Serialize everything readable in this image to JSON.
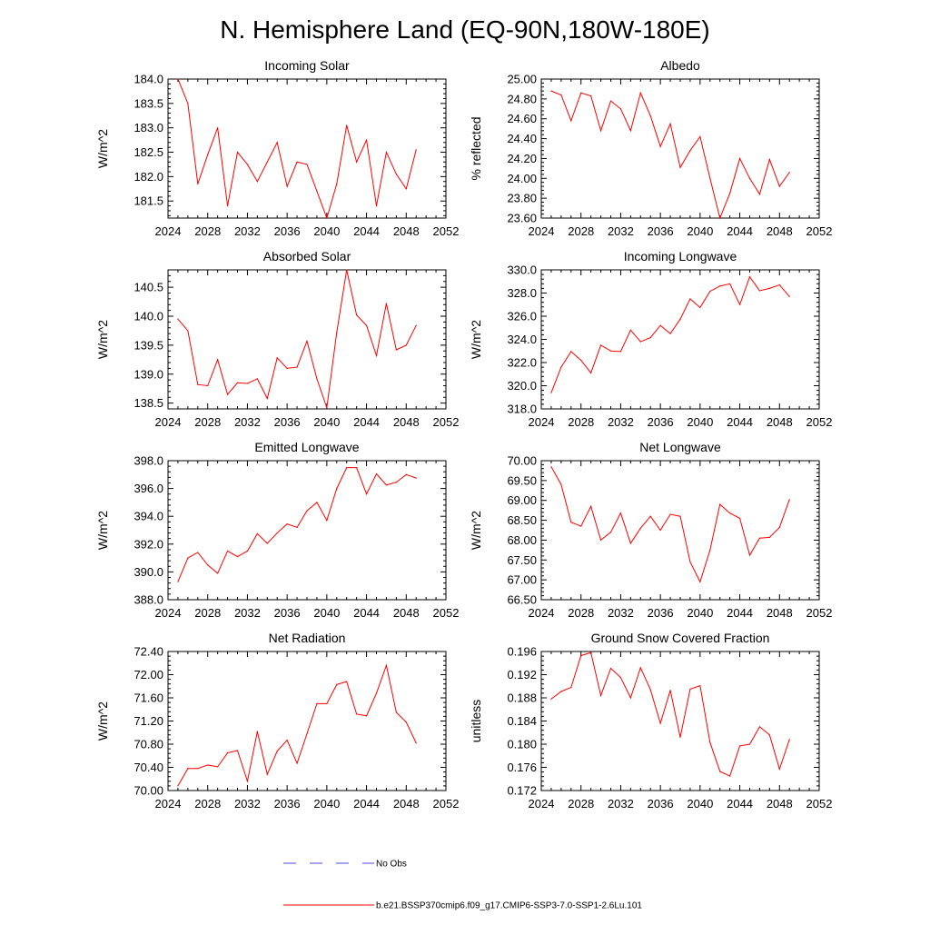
{
  "page_title": "N. Hemisphere Land (EQ-90N,180W-180E)",
  "colors": {
    "model_line": "#ff0000",
    "obs_line": "#4a4ae0",
    "axis": "#000000"
  },
  "legend": {
    "obs_label": "No Obs",
    "model_label": "b.e21.BSSP370cmip6.f09_g17.CMIP6-SSP3-7.0-SSP1-2.6Lu.101"
  },
  "chart_data": [
    {
      "type": "line",
      "title": "Incoming Solar",
      "xlabel": "",
      "ylabel": "W/m^2",
      "xlim": [
        2024,
        2052
      ],
      "ylim": [
        181.15,
        184.0
      ],
      "xticks": [
        2024,
        2028,
        2032,
        2036,
        2040,
        2044,
        2048,
        2052
      ],
      "yticks": [
        181.5,
        182.0,
        182.5,
        183.0,
        183.5,
        184.0
      ],
      "ytick_decimals": 1,
      "series": [
        {
          "x": [
            2025,
            2026,
            2027,
            2028,
            2029,
            2030,
            2031,
            2032,
            2033,
            2034,
            2035,
            2036,
            2037,
            2038,
            2039,
            2040,
            2041,
            2042,
            2043,
            2044,
            2045,
            2046,
            2047,
            2048,
            2049
          ],
          "y": [
            184.0,
            183.5,
            181.85,
            182.45,
            183.0,
            181.4,
            182.5,
            182.25,
            181.9,
            182.3,
            182.7,
            181.8,
            182.3,
            182.25,
            181.7,
            181.15,
            181.85,
            183.05,
            182.3,
            182.75,
            181.4,
            182.5,
            182.05,
            181.75,
            182.55
          ]
        }
      ]
    },
    {
      "type": "line",
      "title": "Albedo",
      "xlabel": "",
      "ylabel": "% reflected",
      "xlim": [
        2024,
        2052
      ],
      "ylim": [
        23.6,
        25.0
      ],
      "xticks": [
        2024,
        2028,
        2032,
        2036,
        2040,
        2044,
        2048,
        2052
      ],
      "yticks": [
        23.6,
        23.8,
        24.0,
        24.2,
        24.4,
        24.6,
        24.8,
        25.0
      ],
      "ytick_decimals": 2,
      "series": [
        {
          "x": [
            2025,
            2026,
            2027,
            2028,
            2029,
            2030,
            2031,
            2032,
            2033,
            2034,
            2035,
            2036,
            2037,
            2038,
            2039,
            2040,
            2041,
            2042,
            2043,
            2044,
            2045,
            2046,
            2047,
            2048,
            2049
          ],
          "y": [
            24.88,
            24.84,
            24.58,
            24.86,
            24.83,
            24.48,
            24.78,
            24.7,
            24.48,
            24.86,
            24.63,
            24.32,
            24.55,
            24.11,
            24.28,
            24.42,
            24.0,
            23.6,
            23.85,
            24.2,
            24.0,
            23.84,
            24.19,
            23.92,
            24.06
          ]
        }
      ]
    },
    {
      "type": "line",
      "title": "Absorbed Solar",
      "xlabel": "",
      "ylabel": "W/m^2",
      "xlim": [
        2024,
        2052
      ],
      "ylim": [
        138.4,
        140.8
      ],
      "xticks": [
        2024,
        2028,
        2032,
        2036,
        2040,
        2044,
        2048,
        2052
      ],
      "yticks": [
        138.5,
        139.0,
        139.5,
        140.0,
        140.5
      ],
      "ytick_decimals": 1,
      "series": [
        {
          "x": [
            2025,
            2026,
            2027,
            2028,
            2029,
            2030,
            2031,
            2032,
            2033,
            2034,
            2035,
            2036,
            2037,
            2038,
            2039,
            2040,
            2041,
            2042,
            2043,
            2044,
            2045,
            2046,
            2047,
            2048,
            2049
          ],
          "y": [
            139.95,
            139.75,
            138.82,
            138.8,
            139.25,
            138.65,
            138.85,
            138.84,
            138.92,
            138.58,
            139.28,
            139.1,
            139.12,
            139.57,
            138.92,
            138.42,
            139.72,
            140.8,
            140.02,
            139.84,
            139.32,
            140.22,
            139.42,
            139.5,
            139.84
          ]
        }
      ]
    },
    {
      "type": "line",
      "title": "Incoming Longwave",
      "xlabel": "",
      "ylabel": "W/m^2",
      "xlim": [
        2024,
        2052
      ],
      "ylim": [
        318.0,
        330.0
      ],
      "xticks": [
        2024,
        2028,
        2032,
        2036,
        2040,
        2044,
        2048,
        2052
      ],
      "yticks": [
        318.0,
        320.0,
        322.0,
        324.0,
        326.0,
        328.0,
        330.0
      ],
      "ytick_decimals": 1,
      "series": [
        {
          "x": [
            2025,
            2026,
            2027,
            2028,
            2029,
            2030,
            2031,
            2032,
            2033,
            2034,
            2035,
            2036,
            2037,
            2038,
            2039,
            2040,
            2041,
            2042,
            2043,
            2044,
            2045,
            2046,
            2047,
            2048,
            2049
          ],
          "y": [
            319.4,
            321.6,
            322.95,
            322.2,
            321.1,
            323.5,
            323.0,
            322.95,
            324.8,
            323.8,
            324.15,
            325.2,
            324.5,
            325.75,
            327.5,
            326.75,
            328.15,
            328.6,
            328.8,
            327.0,
            329.4,
            328.2,
            328.4,
            328.7,
            327.7
          ]
        }
      ]
    },
    {
      "type": "line",
      "title": "Emitted Longwave",
      "xlabel": "",
      "ylabel": "W/m^2",
      "xlim": [
        2024,
        2052
      ],
      "ylim": [
        388.0,
        398.0
      ],
      "xticks": [
        2024,
        2028,
        2032,
        2036,
        2040,
        2044,
        2048,
        2052
      ],
      "yticks": [
        388.0,
        390.0,
        392.0,
        394.0,
        396.0,
        398.0
      ],
      "ytick_decimals": 1,
      "series": [
        {
          "x": [
            2025,
            2026,
            2027,
            2028,
            2029,
            2030,
            2031,
            2032,
            2033,
            2034,
            2035,
            2036,
            2037,
            2038,
            2039,
            2040,
            2041,
            2042,
            2043,
            2044,
            2045,
            2046,
            2047,
            2048,
            2049
          ],
          "y": [
            389.3,
            391.0,
            391.4,
            390.5,
            389.9,
            391.5,
            391.1,
            391.5,
            392.75,
            392.05,
            392.8,
            393.45,
            393.2,
            394.4,
            395.0,
            393.7,
            396.0,
            397.5,
            397.5,
            395.6,
            397.05,
            396.25,
            396.45,
            397.0,
            396.75
          ]
        }
      ]
    },
    {
      "type": "line",
      "title": "Net Longwave",
      "xlabel": "",
      "ylabel": "W/m^2",
      "xlim": [
        2024,
        2052
      ],
      "ylim": [
        66.5,
        70.0
      ],
      "xticks": [
        2024,
        2028,
        2032,
        2036,
        2040,
        2044,
        2048,
        2052
      ],
      "yticks": [
        66.5,
        67.0,
        67.5,
        68.0,
        68.5,
        69.0,
        69.5,
        70.0
      ],
      "ytick_decimals": 2,
      "series": [
        {
          "x": [
            2025,
            2026,
            2027,
            2028,
            2029,
            2030,
            2031,
            2032,
            2033,
            2034,
            2035,
            2036,
            2037,
            2038,
            2039,
            2040,
            2041,
            2042,
            2043,
            2044,
            2045,
            2046,
            2047,
            2048,
            2049
          ],
          "y": [
            69.85,
            69.4,
            68.45,
            68.35,
            68.85,
            68.0,
            68.2,
            68.68,
            67.92,
            68.3,
            68.6,
            68.25,
            68.65,
            68.6,
            67.45,
            66.95,
            67.75,
            68.9,
            68.68,
            68.55,
            67.62,
            68.05,
            68.07,
            68.32,
            69.02
          ]
        }
      ]
    },
    {
      "type": "line",
      "title": "Net Radiation",
      "xlabel": "",
      "ylabel": "W/m^2",
      "xlim": [
        2024,
        2052
      ],
      "ylim": [
        70.0,
        72.4
      ],
      "xticks": [
        2024,
        2028,
        2032,
        2036,
        2040,
        2044,
        2048,
        2052
      ],
      "yticks": [
        70.0,
        70.4,
        70.8,
        71.2,
        71.6,
        72.0,
        72.4
      ],
      "ytick_decimals": 2,
      "series": [
        {
          "x": [
            2025,
            2026,
            2027,
            2028,
            2029,
            2030,
            2031,
            2032,
            2033,
            2034,
            2035,
            2036,
            2037,
            2038,
            2039,
            2040,
            2041,
            2042,
            2043,
            2044,
            2045,
            2046,
            2047,
            2048,
            2049
          ],
          "y": [
            70.08,
            70.38,
            70.38,
            70.44,
            70.41,
            70.65,
            70.69,
            70.16,
            71.02,
            70.28,
            70.68,
            70.87,
            70.47,
            70.98,
            71.5,
            71.5,
            71.83,
            71.88,
            71.32,
            71.29,
            71.68,
            72.16,
            71.35,
            71.18,
            70.82
          ]
        }
      ]
    },
    {
      "type": "line",
      "title": "Ground Snow Covered Fraction",
      "xlabel": "",
      "ylabel": "unitless",
      "xlim": [
        2024,
        2052
      ],
      "ylim": [
        0.172,
        0.196
      ],
      "xticks": [
        2024,
        2028,
        2032,
        2036,
        2040,
        2044,
        2048,
        2052
      ],
      "yticks": [
        0.172,
        0.176,
        0.18,
        0.184,
        0.188,
        0.192,
        0.196
      ],
      "ytick_decimals": 3,
      "series": [
        {
          "x": [
            2025,
            2026,
            2027,
            2028,
            2029,
            2030,
            2031,
            2032,
            2033,
            2034,
            2035,
            2036,
            2037,
            2038,
            2039,
            2040,
            2041,
            2042,
            2043,
            2044,
            2045,
            2046,
            2047,
            2048,
            2049
          ],
          "y": [
            0.1878,
            0.1891,
            0.1898,
            0.1953,
            0.1958,
            0.1884,
            0.1931,
            0.1915,
            0.188,
            0.1932,
            0.1894,
            0.1836,
            0.1893,
            0.1812,
            0.1895,
            0.1901,
            0.1803,
            0.1753,
            0.1745,
            0.1797,
            0.18,
            0.183,
            0.1816,
            0.1757,
            0.1808
          ]
        }
      ]
    }
  ]
}
